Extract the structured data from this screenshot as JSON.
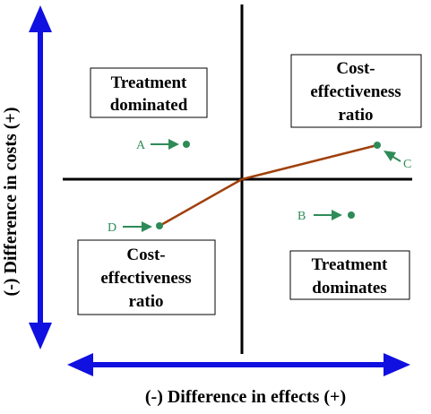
{
  "axes": {
    "x_label": "(-) Difference in effects (+)",
    "y_label": "(-) Difference in costs (+)"
  },
  "quadrants": {
    "top_left": [
      "Treatment",
      "dominated"
    ],
    "top_right": [
      "Cost-",
      "effectiveness",
      "ratio"
    ],
    "bottom_left": [
      "Cost-",
      "effectiveness",
      "ratio"
    ],
    "bottom_right": [
      "Treatment",
      "dominates"
    ]
  },
  "points": {
    "A": "A",
    "B": "B",
    "C": "C",
    "D": "D"
  },
  "colors": {
    "axis_arrow": "#1010e0",
    "point": "#2e8b57",
    "ratio_line": "#a0400a",
    "quadrant_line": "#000000"
  }
}
